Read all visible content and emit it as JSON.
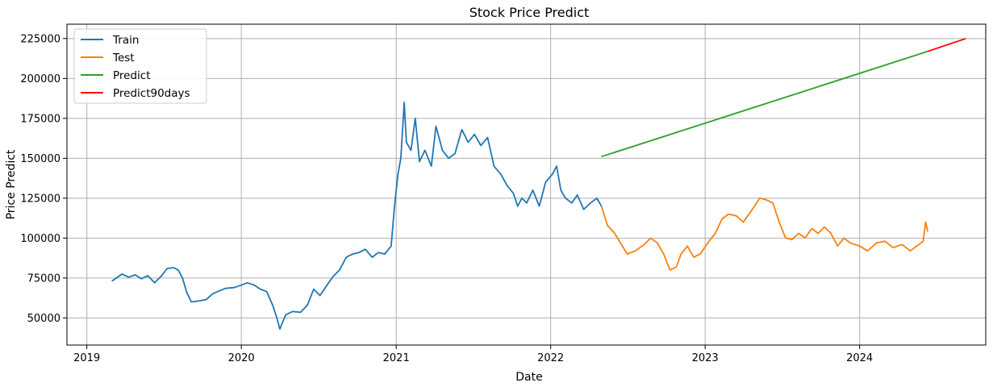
{
  "chart_data": {
    "type": "line",
    "title": "Stock Price Predict",
    "xlabel": "Date",
    "ylabel": "Price Predict",
    "x_axis_type": "date",
    "xlim": [
      "2018-11-15",
      "2024-10-25"
    ],
    "ylim": [
      33000,
      234000
    ],
    "grid": true,
    "legend_position": "upper left",
    "x_ticks": [
      {
        "date": "2019-01-01",
        "label": "2019"
      },
      {
        "date": "2020-01-01",
        "label": "2020"
      },
      {
        "date": "2021-01-01",
        "label": "2021"
      },
      {
        "date": "2022-01-01",
        "label": "2022"
      },
      {
        "date": "2023-01-01",
        "label": "2023"
      },
      {
        "date": "2024-01-01",
        "label": "2024"
      }
    ],
    "y_ticks": [
      {
        "value": 50000,
        "label": "50000"
      },
      {
        "value": 75000,
        "label": "75000"
      },
      {
        "value": 100000,
        "label": "100000"
      },
      {
        "value": 125000,
        "label": "125000"
      },
      {
        "value": 150000,
        "label": "150000"
      },
      {
        "value": 175000,
        "label": "175000"
      },
      {
        "value": 200000,
        "label": "200000"
      },
      {
        "value": 225000,
        "label": "225000"
      }
    ],
    "legend": [
      {
        "name": "Train",
        "color": "#1f77b4"
      },
      {
        "name": "Test",
        "color": "#ff7f0e"
      },
      {
        "name": "Predict",
        "color": "#2ca02c"
      },
      {
        "name": "Predict90days",
        "color": "#ff0000"
      }
    ],
    "series": [
      {
        "name": "Train",
        "color": "#1f77b4",
        "points": [
          [
            "2019-03-01",
            73000
          ],
          [
            "2019-03-12",
            75000
          ],
          [
            "2019-03-25",
            77500
          ],
          [
            "2019-04-10",
            75500
          ],
          [
            "2019-04-25",
            77000
          ],
          [
            "2019-05-10",
            74500
          ],
          [
            "2019-05-25",
            76500
          ],
          [
            "2019-06-10",
            72000
          ],
          [
            "2019-06-25",
            76000
          ],
          [
            "2019-07-10",
            81000
          ],
          [
            "2019-07-25",
            81500
          ],
          [
            "2019-08-05",
            80000
          ],
          [
            "2019-08-15",
            75000
          ],
          [
            "2019-08-25",
            66000
          ],
          [
            "2019-09-05",
            60000
          ],
          [
            "2019-09-20",
            60500
          ],
          [
            "2019-10-10",
            61500
          ],
          [
            "2019-10-25",
            65000
          ],
          [
            "2019-11-10",
            67000
          ],
          [
            "2019-11-25",
            68500
          ],
          [
            "2019-12-15",
            69000
          ],
          [
            "2020-01-01",
            70500
          ],
          [
            "2020-01-15",
            72000
          ],
          [
            "2020-02-01",
            70500
          ],
          [
            "2020-02-15",
            68000
          ],
          [
            "2020-03-01",
            66500
          ],
          [
            "2020-03-15",
            58000
          ],
          [
            "2020-03-25",
            50000
          ],
          [
            "2020-04-01",
            43000
          ],
          [
            "2020-04-15",
            52000
          ],
          [
            "2020-05-01",
            54000
          ],
          [
            "2020-05-20",
            53500
          ],
          [
            "2020-06-05",
            58000
          ],
          [
            "2020-06-20",
            68000
          ],
          [
            "2020-07-05",
            64000
          ],
          [
            "2020-07-20",
            70000
          ],
          [
            "2020-08-05",
            76000
          ],
          [
            "2020-08-20",
            80000
          ],
          [
            "2020-09-05",
            88000
          ],
          [
            "2020-09-20",
            90000
          ],
          [
            "2020-10-05",
            91000
          ],
          [
            "2020-10-20",
            93000
          ],
          [
            "2020-11-05",
            88000
          ],
          [
            "2020-11-20",
            91000
          ],
          [
            "2020-12-05",
            90000
          ],
          [
            "2020-12-20",
            95000
          ],
          [
            "2020-12-28",
            120000
          ],
          [
            "2021-01-05",
            140000
          ],
          [
            "2021-01-12",
            150000
          ],
          [
            "2021-01-20",
            185000
          ],
          [
            "2021-01-25",
            160000
          ],
          [
            "2021-02-05",
            155000
          ],
          [
            "2021-02-15",
            175000
          ],
          [
            "2021-02-25",
            148000
          ],
          [
            "2021-03-10",
            155000
          ],
          [
            "2021-03-25",
            145000
          ],
          [
            "2021-04-05",
            170000
          ],
          [
            "2021-04-20",
            155000
          ],
          [
            "2021-05-05",
            150000
          ],
          [
            "2021-05-20",
            153000
          ],
          [
            "2021-06-05",
            168000
          ],
          [
            "2021-06-20",
            160000
          ],
          [
            "2021-07-05",
            165000
          ],
          [
            "2021-07-20",
            158000
          ],
          [
            "2021-08-05",
            163000
          ],
          [
            "2021-08-20",
            145000
          ],
          [
            "2021-09-05",
            140000
          ],
          [
            "2021-09-20",
            133000
          ],
          [
            "2021-10-05",
            128000
          ],
          [
            "2021-10-15",
            120000
          ],
          [
            "2021-10-25",
            125000
          ],
          [
            "2021-11-05",
            122000
          ],
          [
            "2021-11-20",
            130000
          ],
          [
            "2021-12-05",
            120000
          ],
          [
            "2021-12-20",
            135000
          ],
          [
            "2022-01-05",
            140000
          ],
          [
            "2022-01-15",
            145000
          ],
          [
            "2022-01-25",
            130000
          ],
          [
            "2022-02-05",
            125000
          ],
          [
            "2022-02-20",
            122000
          ],
          [
            "2022-03-05",
            127000
          ],
          [
            "2022-03-20",
            118000
          ],
          [
            "2022-04-05",
            122000
          ],
          [
            "2022-04-20",
            125000
          ],
          [
            "2022-05-01",
            120000
          ]
        ]
      },
      {
        "name": "Test",
        "color": "#ff7f0e",
        "points": [
          [
            "2022-05-01",
            120000
          ],
          [
            "2022-05-15",
            108000
          ],
          [
            "2022-06-01",
            103000
          ],
          [
            "2022-06-15",
            97000
          ],
          [
            "2022-07-01",
            90000
          ],
          [
            "2022-07-20",
            92000
          ],
          [
            "2022-08-10",
            96000
          ],
          [
            "2022-08-25",
            100000
          ],
          [
            "2022-09-10",
            97000
          ],
          [
            "2022-09-25",
            90000
          ],
          [
            "2022-10-10",
            80000
          ],
          [
            "2022-10-25",
            82000
          ],
          [
            "2022-11-05",
            90000
          ],
          [
            "2022-11-20",
            95000
          ],
          [
            "2022-12-05",
            88000
          ],
          [
            "2022-12-20",
            90000
          ],
          [
            "2023-01-10",
            98000
          ],
          [
            "2023-01-25",
            103000
          ],
          [
            "2023-02-10",
            112000
          ],
          [
            "2023-02-25",
            115000
          ],
          [
            "2023-03-15",
            114000
          ],
          [
            "2023-04-01",
            110000
          ],
          [
            "2023-04-20",
            117000
          ],
          [
            "2023-05-10",
            125000
          ],
          [
            "2023-05-25",
            124000
          ],
          [
            "2023-06-10",
            122000
          ],
          [
            "2023-06-25",
            110000
          ],
          [
            "2023-07-10",
            100000
          ],
          [
            "2023-07-25",
            99000
          ],
          [
            "2023-08-10",
            103000
          ],
          [
            "2023-08-25",
            100000
          ],
          [
            "2023-09-10",
            106000
          ],
          [
            "2023-09-25",
            103000
          ],
          [
            "2023-10-10",
            107000
          ],
          [
            "2023-10-25",
            103000
          ],
          [
            "2023-11-10",
            95000
          ],
          [
            "2023-11-25",
            100000
          ],
          [
            "2023-12-10",
            97000
          ],
          [
            "2024-01-01",
            95000
          ],
          [
            "2024-01-20",
            92000
          ],
          [
            "2024-02-10",
            97000
          ],
          [
            "2024-03-01",
            98000
          ],
          [
            "2024-03-20",
            94000
          ],
          [
            "2024-04-10",
            96000
          ],
          [
            "2024-04-30",
            92000
          ],
          [
            "2024-05-15",
            95000
          ],
          [
            "2024-05-30",
            98000
          ],
          [
            "2024-06-05",
            110000
          ],
          [
            "2024-06-10",
            104000
          ]
        ]
      },
      {
        "name": "Predict",
        "color": "#2ca02c",
        "points": [
          [
            "2022-05-01",
            151000
          ],
          [
            "2024-06-10",
            217000
          ]
        ]
      },
      {
        "name": "Predict90days",
        "color": "#ff0000",
        "points": [
          [
            "2024-06-10",
            217000
          ],
          [
            "2024-09-08",
            225000
          ]
        ]
      }
    ]
  }
}
